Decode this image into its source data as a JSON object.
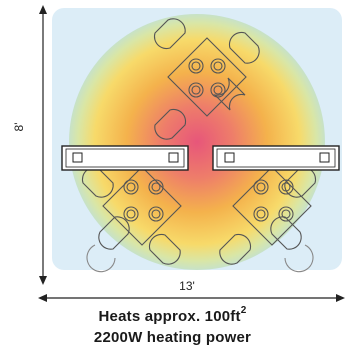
{
  "dimensions": {
    "height_label": "8'",
    "width_label": "13'"
  },
  "caption": {
    "line1_text": "Heats approx. 100ft",
    "line1_superscript": "2",
    "line2": "2200W heating power"
  },
  "colors": {
    "room_fill": "#dcedf7",
    "heat_core": "#e7567a",
    "heat_mid": "#f4b24c",
    "heat_outer": "#f7da6a",
    "heat_edge": "#c7e2c8",
    "heater_fill": "#ffffff",
    "line": "#333333"
  },
  "icons": {
    "heater": "wall-heater-icon",
    "table": "table-with-chairs-icon"
  }
}
